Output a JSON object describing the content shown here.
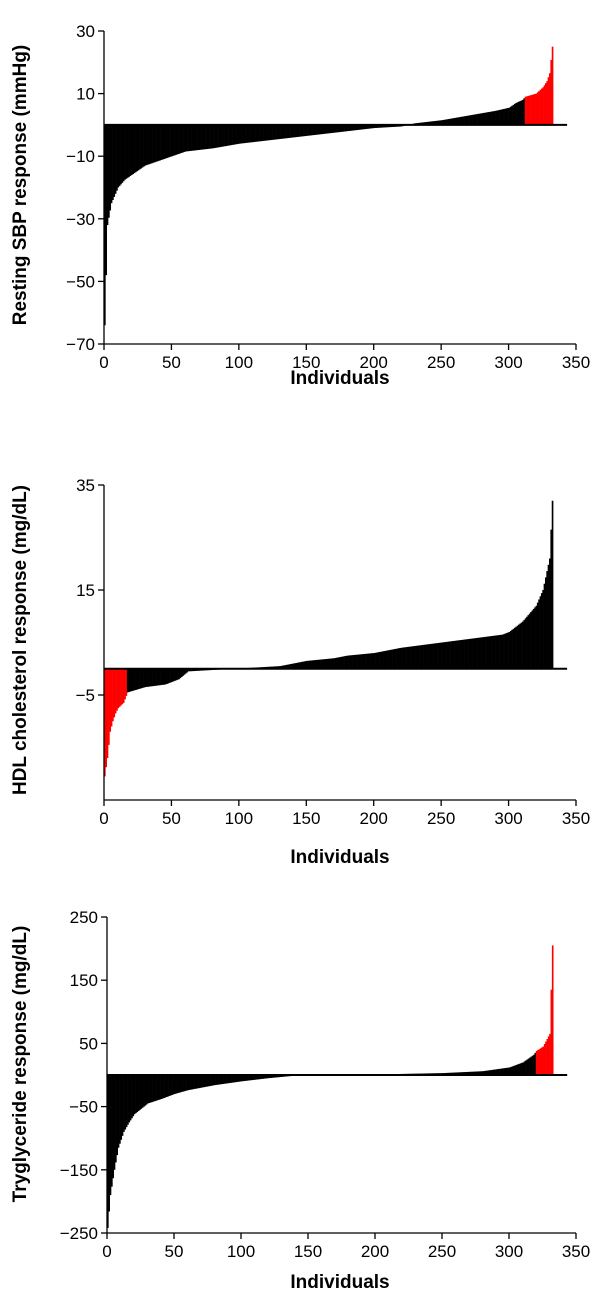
{
  "colors": {
    "black": "#000000",
    "highlight": "#ff0000"
  },
  "chart_data": [
    {
      "type": "bar",
      "ylabel": "Resting SBP response (mmHg)",
      "xlabel": "Individuals",
      "xlim": [
        0,
        350
      ],
      "ylim": [
        -70,
        30
      ],
      "xticks": [
        0,
        50,
        100,
        150,
        200,
        250,
        300,
        350
      ],
      "yticks": [
        30,
        10,
        -10,
        -30,
        -50,
        -70
      ],
      "grid": false,
      "n_individuals": 333,
      "highlight_range": [
        312,
        333
      ],
      "knots": [
        [
          0,
          -64
        ],
        [
          2,
          -32
        ],
        [
          5,
          -25
        ],
        [
          10,
          -20
        ],
        [
          15,
          -17.5
        ],
        [
          20,
          -16
        ],
        [
          30,
          -13
        ],
        [
          40,
          -11.5
        ],
        [
          50,
          -10
        ],
        [
          60,
          -8.5
        ],
        [
          80,
          -7.5
        ],
        [
          100,
          -6
        ],
        [
          120,
          -5
        ],
        [
          140,
          -4
        ],
        [
          160,
          -3
        ],
        [
          180,
          -2
        ],
        [
          200,
          -1
        ],
        [
          220,
          -0.5
        ],
        [
          230,
          0.5
        ],
        [
          250,
          1.5
        ],
        [
          270,
          3
        ],
        [
          290,
          4.5
        ],
        [
          300,
          5.5
        ],
        [
          305,
          7
        ],
        [
          310,
          8
        ],
        [
          312,
          9
        ],
        [
          320,
          10
        ],
        [
          325,
          12
        ],
        [
          328,
          14
        ],
        [
          330,
          16.5
        ],
        [
          332,
          25
        ]
      ]
    },
    {
      "type": "bar",
      "ylabel": "HDL cholesterol response (mg/dL)",
      "xlabel": "Individuals",
      "xlim": [
        0,
        350
      ],
      "ylim": [
        -25,
        35
      ],
      "xticks": [
        0,
        50,
        100,
        150,
        200,
        250,
        300,
        350
      ],
      "yticks": [
        35,
        15,
        -5
      ],
      "grid": false,
      "n_individuals": 333,
      "highlight_range": [
        0,
        17
      ],
      "knots": [
        [
          0,
          -20.5
        ],
        [
          2,
          -17
        ],
        [
          4,
          -12
        ],
        [
          6,
          -10
        ],
        [
          8,
          -8.5
        ],
        [
          10,
          -7.5
        ],
        [
          14,
          -6.5
        ],
        [
          17,
          -4.5
        ],
        [
          30,
          -3.5
        ],
        [
          45,
          -3
        ],
        [
          55,
          -2
        ],
        [
          62,
          -0.5
        ],
        [
          130,
          0.5
        ],
        [
          140,
          1
        ],
        [
          150,
          1.5
        ],
        [
          170,
          2
        ],
        [
          180,
          2.5
        ],
        [
          200,
          3
        ],
        [
          220,
          4
        ],
        [
          250,
          5
        ],
        [
          280,
          6
        ],
        [
          295,
          6.5
        ],
        [
          300,
          7
        ],
        [
          310,
          9
        ],
        [
          320,
          12
        ],
        [
          325,
          15
        ],
        [
          330,
          21
        ],
        [
          332,
          32
        ]
      ]
    },
    {
      "type": "bar",
      "ylabel": "Tryglyceride response (mg/dL)",
      "xlabel": "Individuals",
      "xlim": [
        0,
        350
      ],
      "ylim": [
        -250,
        250
      ],
      "xticks": [
        0,
        50,
        100,
        150,
        200,
        250,
        300,
        350
      ],
      "yticks": [
        250,
        150,
        50,
        -50,
        -150,
        -250
      ],
      "grid": false,
      "n_individuals": 333,
      "highlight_range": [
        320,
        333
      ],
      "knots": [
        [
          0,
          -242
        ],
        [
          2,
          -190
        ],
        [
          5,
          -150
        ],
        [
          8,
          -115
        ],
        [
          12,
          -90
        ],
        [
          16,
          -75
        ],
        [
          20,
          -62
        ],
        [
          30,
          -45
        ],
        [
          40,
          -38
        ],
        [
          50,
          -30
        ],
        [
          60,
          -24
        ],
        [
          80,
          -16
        ],
        [
          100,
          -10
        ],
        [
          120,
          -5
        ],
        [
          140,
          -1
        ],
        [
          180,
          0
        ],
        [
          250,
          3
        ],
        [
          280,
          6
        ],
        [
          300,
          12
        ],
        [
          310,
          20
        ],
        [
          318,
          32
        ],
        [
          320,
          38
        ],
        [
          325,
          45
        ],
        [
          330,
          65
        ],
        [
          332,
          205
        ]
      ]
    }
  ]
}
